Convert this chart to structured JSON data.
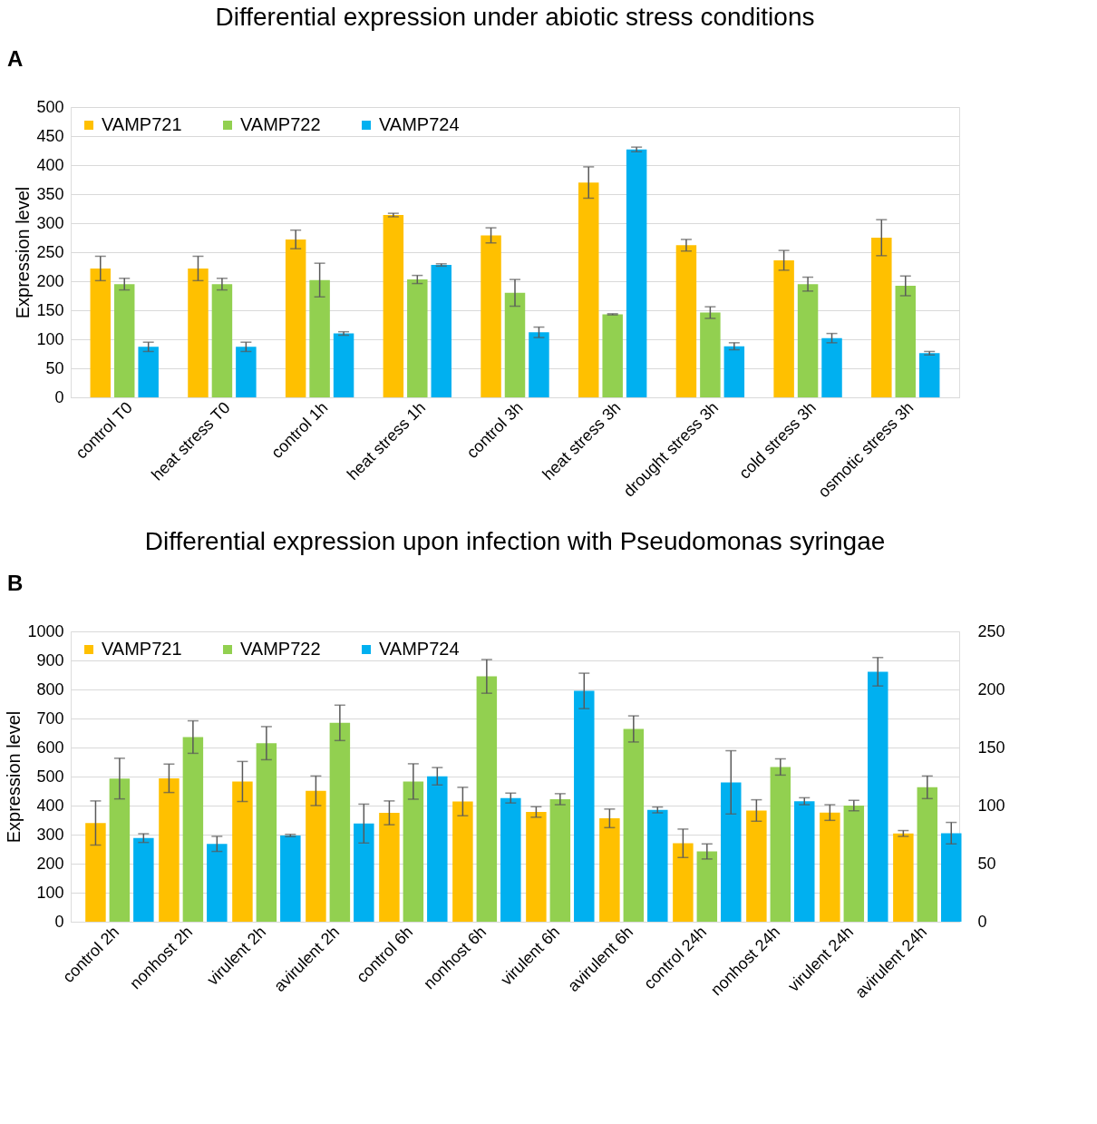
{
  "chart_data": [
    {
      "type": "bar",
      "title": "Differential expression under abiotic stress conditions",
      "ylabel": "Expression level",
      "annotations": [
        "A"
      ],
      "categories": [
        "control T0",
        "heat stress T0",
        "control 1h",
        "heat stress 1h",
        "control 3h",
        "heat stress 3h",
        "drought stress 3h",
        "cold stress 3h",
        "osmotic stress 3h"
      ],
      "series": [
        {
          "name": "VAMP721",
          "color": "#ffc000",
          "values": [
            222,
            222,
            272,
            314,
            279,
            370,
            262,
            236,
            275
          ],
          "errors": [
            21,
            21,
            16,
            3,
            13,
            27,
            10,
            17,
            31
          ]
        },
        {
          "name": "VAMP722",
          "color": "#92d050",
          "values": [
            195,
            195,
            202,
            203,
            180,
            143,
            146,
            195,
            192
          ],
          "errors": [
            10,
            10,
            29,
            7,
            23,
            1,
            10,
            12,
            17
          ]
        },
        {
          "name": "VAMP724",
          "color": "#00b0f0",
          "values": [
            87,
            87,
            110,
            228,
            112,
            427,
            88,
            102,
            76
          ],
          "errors": [
            8,
            8,
            3,
            2,
            9,
            4,
            6,
            8,
            3
          ]
        }
      ],
      "ylim": [
        0,
        500
      ],
      "yticks": [
        0,
        50,
        100,
        150,
        200,
        250,
        300,
        350,
        400,
        450,
        500
      ],
      "grid": "y",
      "legend": "top left"
    },
    {
      "type": "bar",
      "title": "Differential expression upon infection with Pseudomonas syringae",
      "ylabel": "Expression level",
      "annotations": [
        "B"
      ],
      "categories": [
        "control 2h",
        "nonhost 2h",
        "virulent 2h",
        "avirulent 2h",
        "control 6h",
        "nonhost 6h",
        "virulent 6h",
        "avirulent 6h",
        "control 24h",
        "nonhost 24h",
        "virulent 24h",
        "avirulent 24h"
      ],
      "series": [
        {
          "name": "VAMP721",
          "color": "#ffc000",
          "values": [
            340,
            494,
            483,
            451,
            375,
            414,
            378,
            356,
            270,
            383,
            376,
            304
          ],
          "errors": [
            76,
            49,
            69,
            51,
            41,
            49,
            18,
            32,
            49,
            37,
            27,
            10
          ]
        },
        {
          "name": "VAMP722",
          "color": "#92d050",
          "values": [
            493,
            636,
            615,
            685,
            483,
            845,
            422,
            664,
            242,
            533,
            400,
            463
          ],
          "errors": [
            70,
            56,
            57,
            61,
            61,
            58,
            19,
            45,
            26,
            28,
            18,
            39
          ]
        },
        {
          "name": "VAMP724",
          "color": "#00b0f0",
          "values": [
            288,
            268,
            297,
            338,
            501,
            426,
            795,
            385,
            480,
            415,
            861,
            305
          ],
          "errors": [
            15,
            26,
            4,
            67,
            30,
            17,
            61,
            10,
            109,
            12,
            49,
            37
          ]
        }
      ],
      "ylim": [
        0,
        1000
      ],
      "yticks": [
        0,
        100,
        200,
        300,
        400,
        500,
        600,
        700,
        800,
        900,
        1000
      ],
      "y2lim": [
        0,
        250
      ],
      "y2ticks": [
        0,
        50,
        100,
        150,
        200,
        250
      ],
      "grid": "y",
      "legend": "top left"
    }
  ]
}
